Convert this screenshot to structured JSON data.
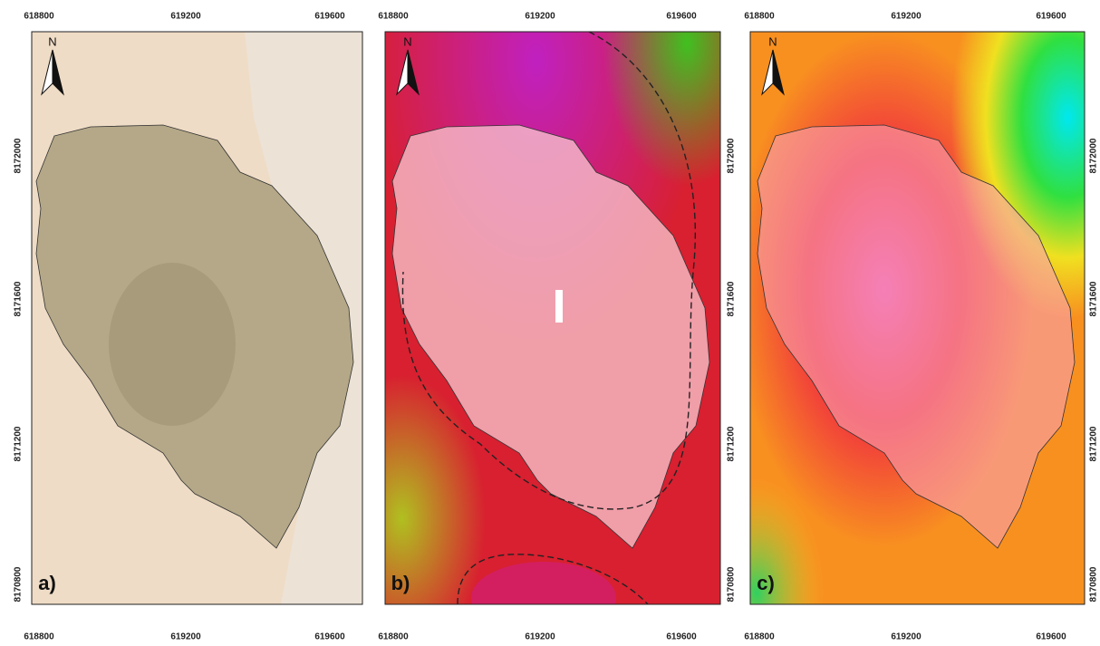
{
  "panels": [
    {
      "label": "a)",
      "north": "N",
      "top_ticks": [
        618800,
        619200,
        619600
      ],
      "bottom_ticks": [
        618800,
        619200,
        619600
      ],
      "side_ticks": [
        8172000,
        8171600,
        8171200,
        8170800
      ]
    },
    {
      "label": "b)",
      "north": "N",
      "top_ticks": [
        618800,
        619200,
        619600
      ],
      "bottom_ticks": [
        618800,
        619200,
        619600
      ],
      "side_ticks": [
        8172000,
        8171600,
        8171200,
        8170800
      ]
    },
    {
      "label": "c)",
      "north": "N",
      "top_ticks": [
        618800,
        619200,
        619600
      ],
      "bottom_ticks": [
        618800,
        619200,
        619600
      ],
      "side_ticks": [
        8172000,
        8171600,
        8171200,
        8170800
      ]
    }
  ]
}
